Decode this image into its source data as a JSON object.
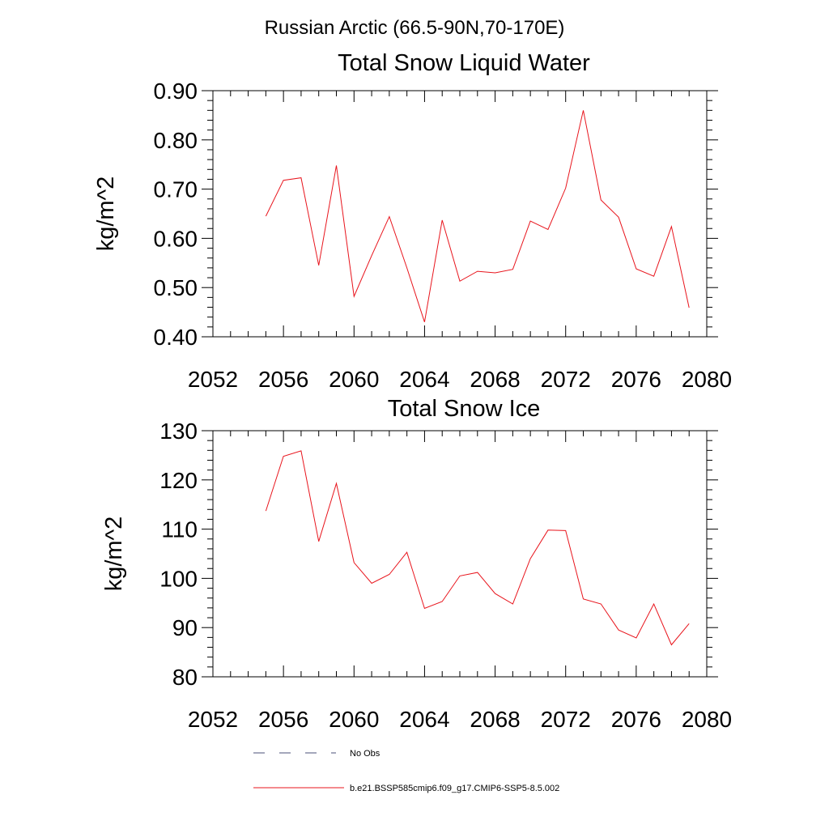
{
  "figure": {
    "suptitle": "Russian Arctic (66.5-90N,70-170E)"
  },
  "legend": [
    {
      "label": "No Obs",
      "color": "#4a4f7a",
      "dashed": true
    },
    {
      "label": "b.e21.BSSP585cmip6.f09_g17.CMIP6-SSP5-8.5.002",
      "color": "#e8141c",
      "dashed": false
    }
  ],
  "chart_data": [
    {
      "type": "line",
      "title": "Total Snow Liquid Water",
      "xlabel": "",
      "ylabel": "kg/m^2",
      "xlim": [
        2052,
        2080
      ],
      "ylim": [
        0.4,
        0.9
      ],
      "xticks": [
        2052,
        2056,
        2060,
        2064,
        2068,
        2072,
        2076,
        2080
      ],
      "xticklabels": [
        "2052",
        "2056",
        "2060",
        "2064",
        "2068",
        "2072",
        "2076",
        "2080"
      ],
      "yticks": [
        0.4,
        0.5,
        0.6,
        0.7,
        0.8,
        0.9
      ],
      "yticklabels": [
        "0.40",
        "0.50",
        "0.60",
        "0.70",
        "0.80",
        "0.90"
      ],
      "grid": false,
      "series": [
        {
          "name": "b.e21.BSSP585cmip6.f09_g17.CMIP6-SSP5-8.5.002",
          "color": "#e8141c",
          "x": [
            2055,
            2056,
            2057,
            2058,
            2059,
            2060,
            2061,
            2062,
            2063,
            2064,
            2065,
            2066,
            2067,
            2068,
            2069,
            2070,
            2071,
            2072,
            2073,
            2074,
            2075,
            2076,
            2077,
            2078,
            2079
          ],
          "y": [
            0.645,
            0.718,
            0.723,
            0.545,
            0.748,
            0.482,
            0.565,
            0.644,
            0.54,
            0.43,
            0.637,
            0.513,
            0.533,
            0.53,
            0.537,
            0.635,
            0.618,
            0.702,
            0.86,
            0.678,
            0.643,
            0.538,
            0.523,
            0.624,
            0.459
          ]
        }
      ]
    },
    {
      "type": "line",
      "title": "Total Snow Ice",
      "xlabel": "",
      "ylabel": "kg/m^2",
      "xlim": [
        2052,
        2080
      ],
      "ylim": [
        80,
        130
      ],
      "xticks": [
        2052,
        2056,
        2060,
        2064,
        2068,
        2072,
        2076,
        2080
      ],
      "xticklabels": [
        "2052",
        "2056",
        "2060",
        "2064",
        "2068",
        "2072",
        "2076",
        "2080"
      ],
      "yticks": [
        80,
        90,
        100,
        110,
        120,
        130
      ],
      "yticklabels": [
        "80",
        "90",
        "100",
        "110",
        "120",
        "130"
      ],
      "grid": false,
      "series": [
        {
          "name": "b.e21.BSSP585cmip6.f09_g17.CMIP6-SSP5-8.5.002",
          "color": "#e8141c",
          "x": [
            2055,
            2056,
            2057,
            2058,
            2059,
            2060,
            2061,
            2062,
            2063,
            2064,
            2065,
            2066,
            2067,
            2068,
            2069,
            2070,
            2071,
            2072,
            2073,
            2074,
            2075,
            2076,
            2077,
            2078,
            2079
          ],
          "y": [
            113.7,
            124.8,
            125.9,
            107.5,
            119.3,
            103.2,
            99.0,
            100.8,
            105.3,
            93.9,
            95.3,
            100.5,
            101.2,
            96.9,
            94.8,
            104.0,
            109.8,
            109.7,
            95.8,
            94.8,
            89.5,
            87.9,
            94.8,
            86.5,
            90.8
          ]
        }
      ]
    }
  ]
}
